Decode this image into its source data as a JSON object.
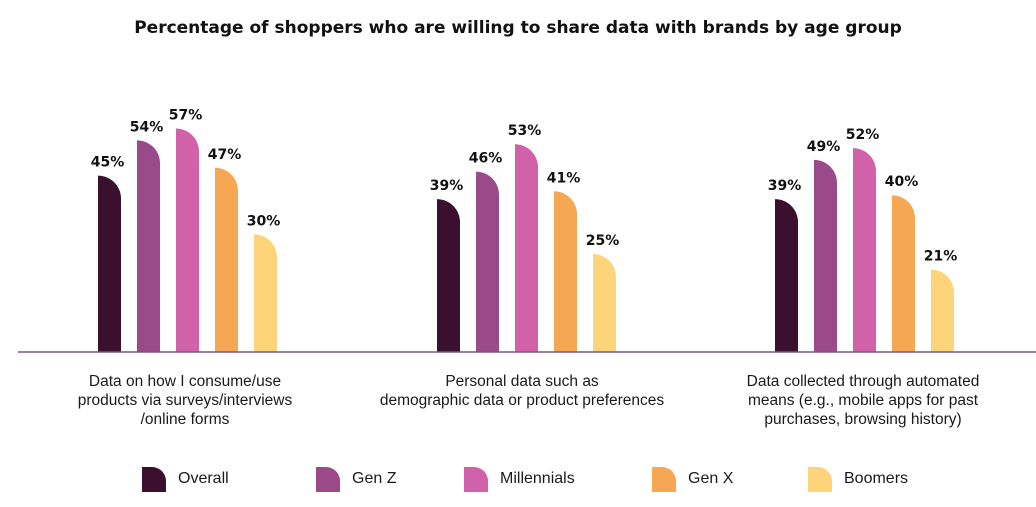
{
  "chart_data": {
    "type": "bar",
    "title": "Percentage of shoppers who are willing to share data with brands by age group",
    "categories": [
      "Data on how I consume/use\nproducts via surveys/interviews\n/online forms",
      "Personal data such as\ndemographic data or product preferences",
      "Data collected through automated\nmeans (e.g., mobile apps for past\npurchases, browsing history)"
    ],
    "series": [
      {
        "name": "Overall",
        "values": [
          45,
          39,
          39
        ],
        "color": "#3b0f2e"
      },
      {
        "name": "Gen Z",
        "values": [
          54,
          46,
          49
        ],
        "color": "#9b4a89"
      },
      {
        "name": "Millennials",
        "values": [
          57,
          53,
          52
        ],
        "color": "#d161a8"
      },
      {
        "name": "Gen X",
        "values": [
          47,
          41,
          40
        ],
        "color": "#f6a754"
      },
      {
        "name": "Boomers",
        "values": [
          30,
          25,
          21
        ],
        "color": "#fdd47a"
      }
    ],
    "value_suffix": "%",
    "ylim": [
      0,
      100
    ],
    "grid": false,
    "legend_position": "bottom",
    "axis_color": "#6e5a8a"
  }
}
